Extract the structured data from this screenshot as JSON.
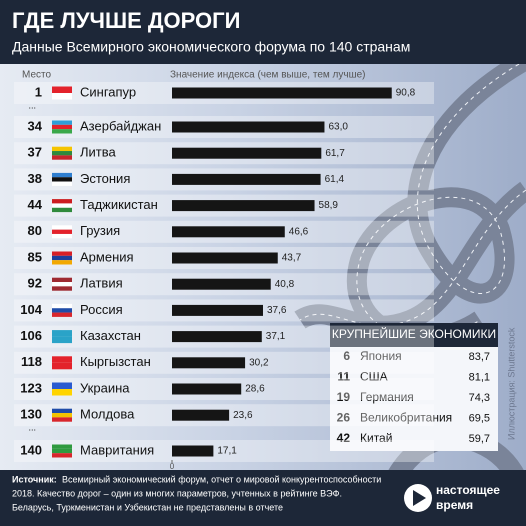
{
  "chart_data": {
    "type": "barh",
    "title": "ГДЕ ЛУЧШЕ ДОРОГИ",
    "subtitle": "Данные Всемирного экономического форума по 140 странам",
    "rank_header": "Место",
    "x_label": "Значение индекса (чем выше, тем лучше)",
    "ranks": [
      1,
      34,
      37,
      38,
      44,
      80,
      85,
      92,
      104,
      106,
      118,
      123,
      130,
      140
    ],
    "gap_marks": [
      "...",
      "..."
    ],
    "categories": [
      "Сингапур",
      "Азербайджан",
      "Литва",
      "Эстония",
      "Таджикистан",
      "Грузия",
      "Армения",
      "Латвия",
      "Россия",
      "Казахстан",
      "Кыргызстан",
      "Украина",
      "Молдова",
      "Мавритания"
    ],
    "values": [
      90.8,
      63.0,
      61.7,
      61.4,
      58.9,
      46.6,
      43.7,
      40.8,
      37.6,
      37.1,
      30.2,
      28.6,
      23.6,
      17.1
    ],
    "value_labels": [
      "90,8",
      "63,0",
      "61,7",
      "61,4",
      "58,9",
      "46,6",
      "43,7",
      "40,8",
      "37,6",
      "37,1",
      "30,2",
      "28,6",
      "23,6",
      "17,1"
    ],
    "color": "#151515",
    "xlim": [
      0,
      100
    ],
    "xticks": [
      0
    ]
  },
  "inset": {
    "title": "КРУПНЕЙШИЕ ЭКОНОМИКИ",
    "rows": [
      [
        "6",
        "Япония",
        "83,7"
      ],
      [
        "11",
        "США",
        "81,1"
      ],
      [
        "19",
        "Германия",
        "74,3"
      ],
      [
        "26",
        "Великобритания",
        "69,5"
      ],
      [
        "42",
        "Китай",
        "59,7"
      ]
    ]
  },
  "footer": {
    "source_label": "Источник:",
    "source_text": [
      "Всемирный экономический форум, отчет о мировой конкурентоспособности",
      "2018. Качество дорог – один из многих параметров, учтенных в рейтинге ВЭФ.",
      "Беларусь, Туркменистан и Узбекистан не представлены в отчете"
    ],
    "credit": "Иллюстрация: Shutterstock",
    "logo": [
      "настоящее",
      "время"
    ]
  }
}
